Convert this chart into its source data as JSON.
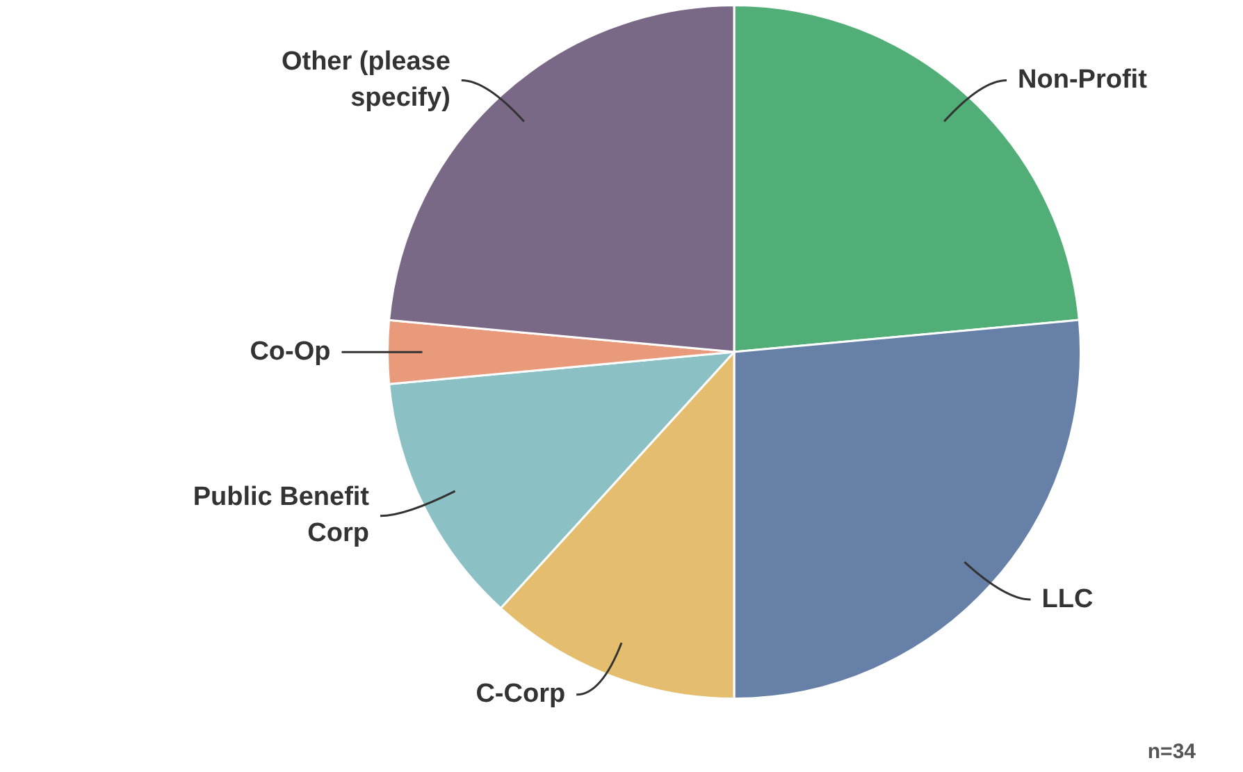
{
  "chart_data": {
    "type": "pie",
    "categories": [
      "Non-Profit",
      "LLC",
      "C-Corp",
      "Public Benefit Corp",
      "Co-Op",
      "Other (please specify)"
    ],
    "values": [
      23.53,
      26.47,
      11.76,
      11.76,
      2.94,
      23.54
    ],
    "colors": [
      "#52ae77",
      "#6680a8",
      "#e5bd6e",
      "#8bc0c4",
      "#e99a7b",
      "#7a6887"
    ],
    "legend": false,
    "annotations": [
      "n=34"
    ]
  }
}
